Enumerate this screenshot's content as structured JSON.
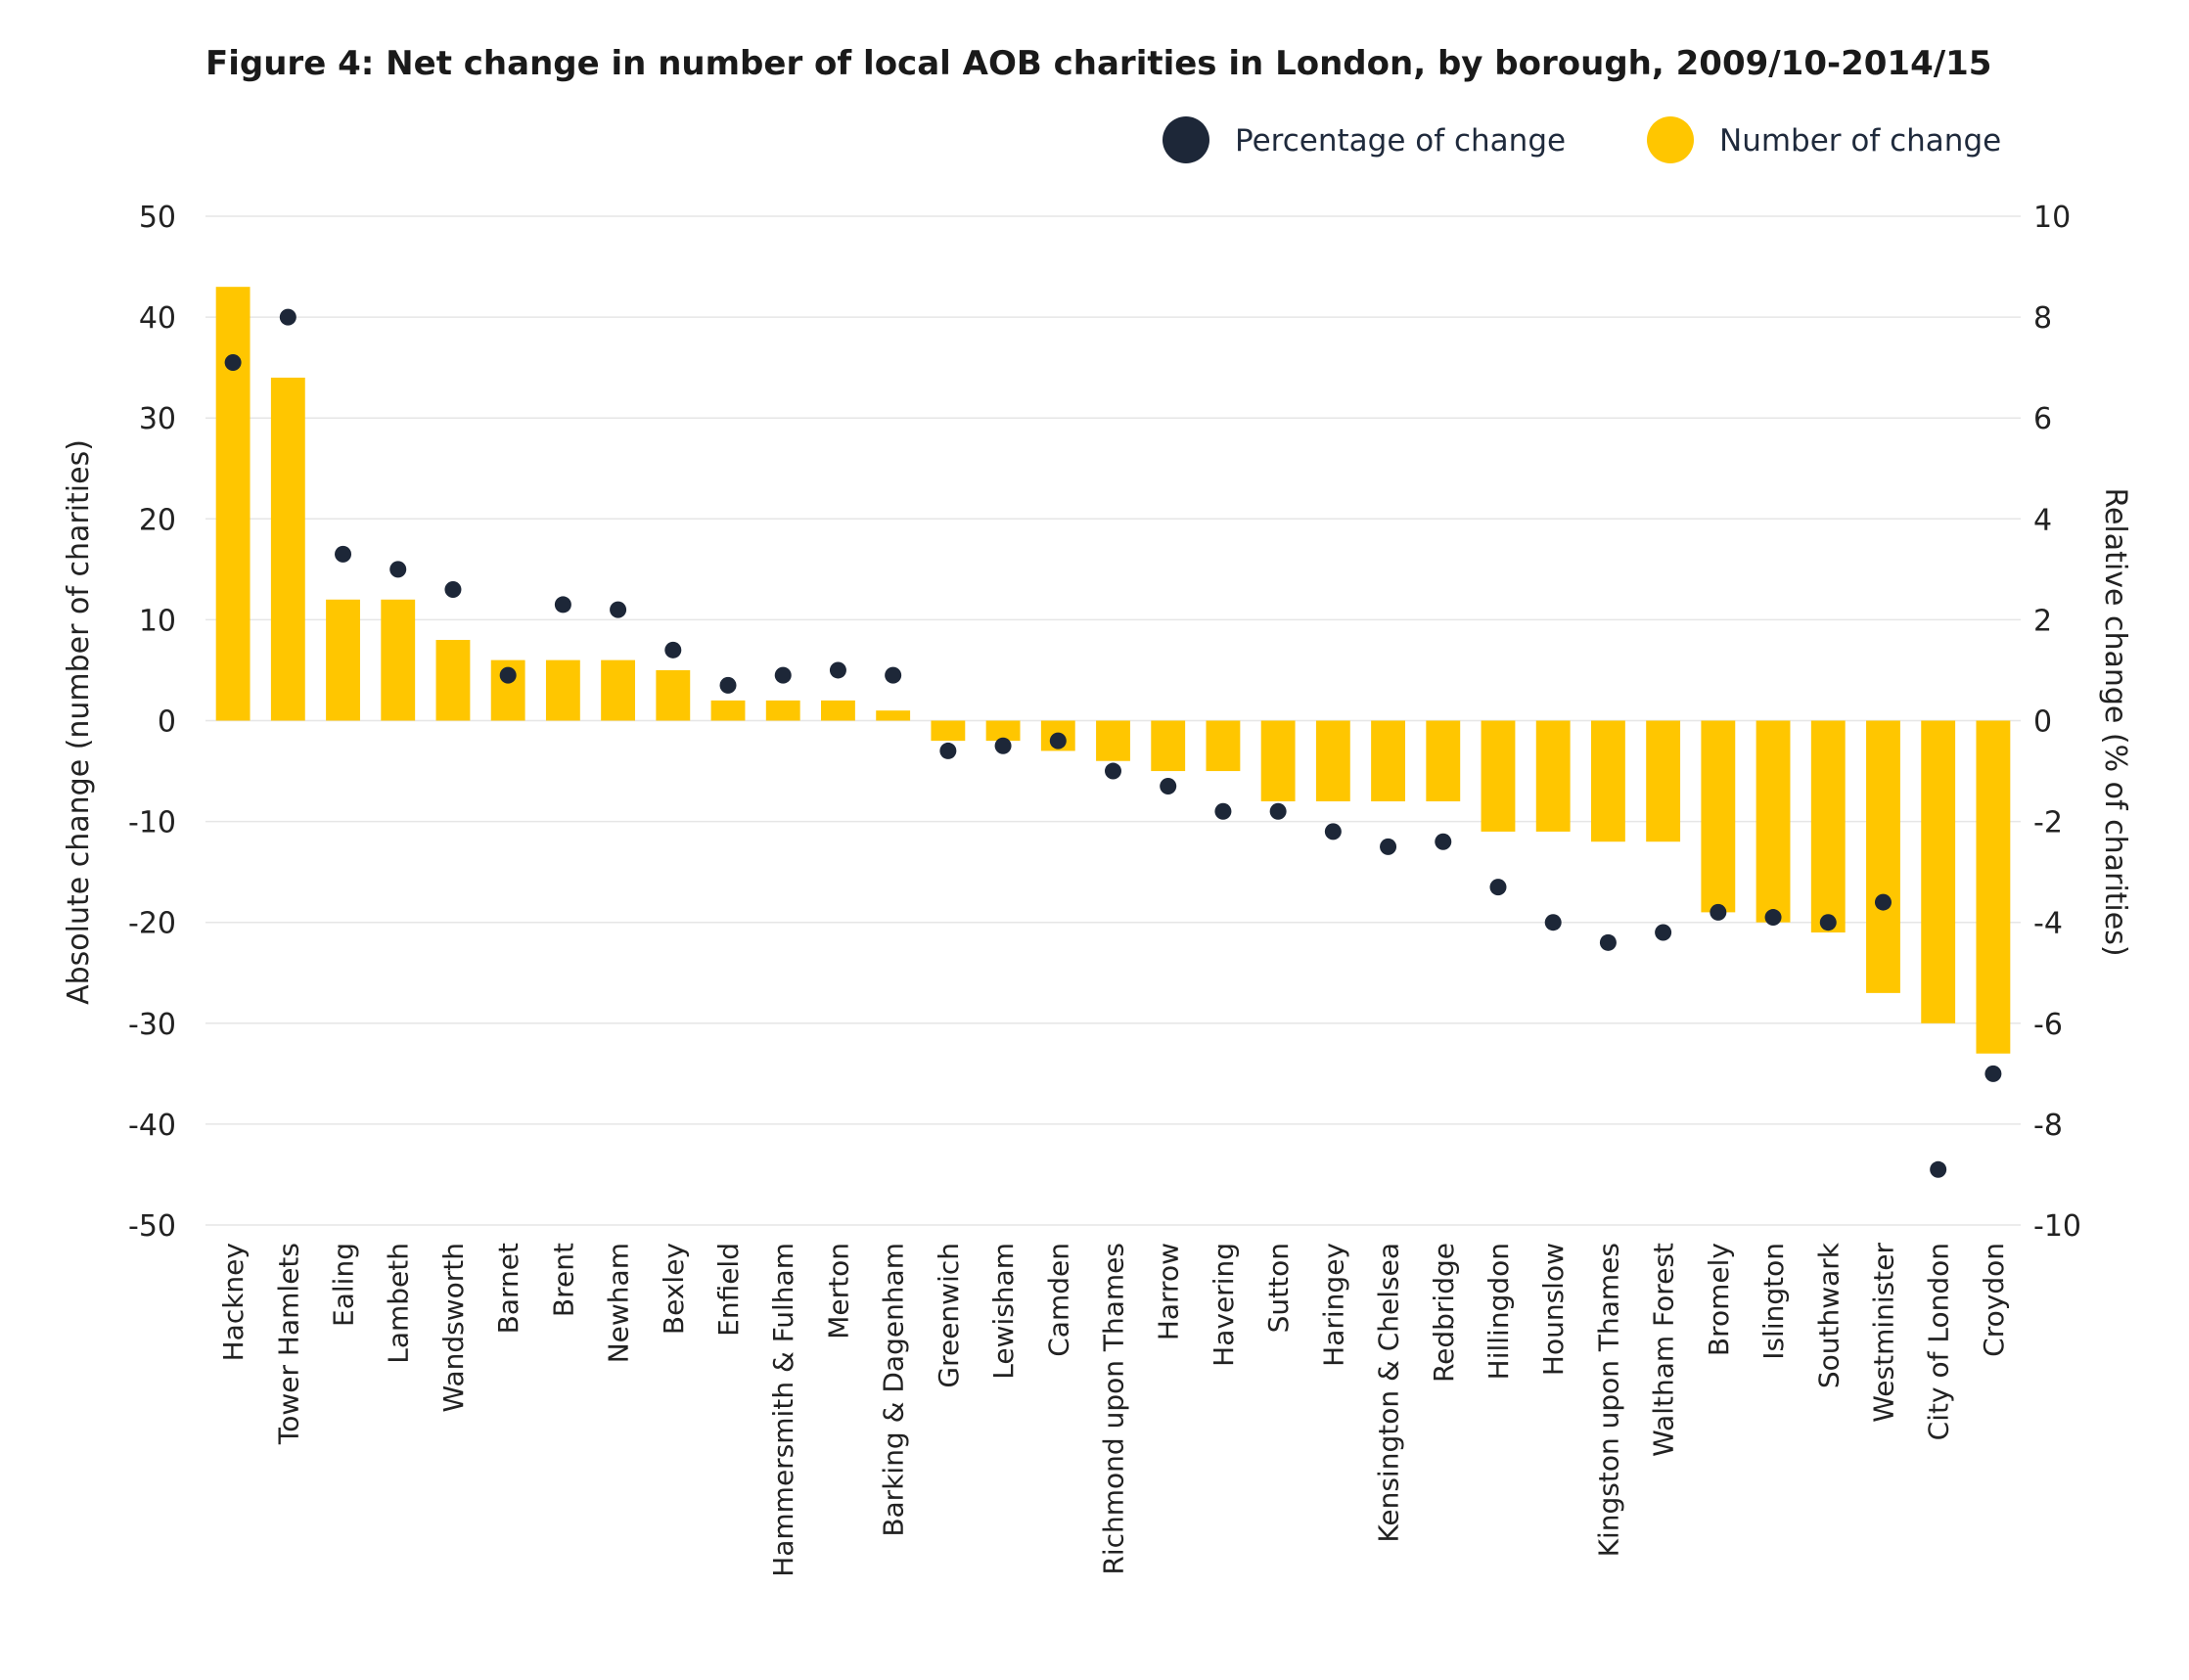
{
  "chart_data": {
    "type": "bar",
    "title": "Figure 4: Net change in number of local AOB charities in London, by borough, 2009/10-2014/15",
    "ylabel": "Absolute change (number of charities)",
    "y2label": "Relative change (% of charities)",
    "ylim": [
      -50,
      50
    ],
    "y2lim": [
      -10,
      10
    ],
    "yticks": [
      50,
      40,
      30,
      20,
      10,
      0,
      -10,
      -20,
      -30,
      -40,
      -50
    ],
    "y2ticks": [
      10,
      8,
      6,
      4,
      2,
      0,
      -2,
      -4,
      -6,
      -8,
      -10
    ],
    "legend_position": "top-right",
    "grid": true,
    "categories": [
      "Hackney",
      "Tower Hamlets",
      "Ealing",
      "Lambeth",
      "Wandsworth",
      "Barnet",
      "Brent",
      "Newham",
      "Bexley",
      "Enfield",
      "Hammersmith & Fulham",
      "Merton",
      "Barking & Dagenham",
      "Greenwich",
      "Lewisham",
      "Camden",
      "Richmond upon Thames",
      "Harrow",
      "Havering",
      "Sutton",
      "Haringey",
      "Kensington & Chelsea",
      "Redbridge",
      "Hillingdon",
      "Hounslow",
      "Kingston upon Thames",
      "Waltham Forest",
      "Bromely",
      "Islington",
      "Southwark",
      "Westminister",
      "City of London",
      "Croydon"
    ],
    "series": [
      {
        "name": "Number of change",
        "axis": "left",
        "color": "#FFC600",
        "marker": "bar",
        "values": [
          43,
          34,
          12,
          12,
          8,
          6,
          6,
          6,
          5,
          2,
          2,
          2,
          1,
          -2,
          -2,
          -3,
          -4,
          -5,
          -5,
          -8,
          -8,
          -8,
          -8,
          -11,
          -11,
          -12,
          -12,
          -19,
          -20,
          -21,
          -27,
          -30,
          -33
        ]
      },
      {
        "name": "Percentage of change",
        "axis": "right",
        "color": "#1d2738",
        "marker": "dot",
        "values": [
          7.1,
          8.0,
          3.3,
          3.0,
          2.6,
          0.9,
          2.3,
          2.2,
          1.4,
          0.7,
          0.9,
          1.0,
          0.9,
          -0.6,
          -0.5,
          -0.4,
          -1.0,
          -1.3,
          -1.8,
          -1.8,
          -2.2,
          -2.5,
          -2.4,
          -3.3,
          -4.0,
          -4.4,
          -4.2,
          -3.8,
          -3.9,
          -4.0,
          -3.6,
          -8.9,
          -7.0
        ]
      }
    ],
    "legend": [
      {
        "label": "Percentage of change",
        "color": "#1d2738"
      },
      {
        "label": "Number of change",
        "color": "#FFC600"
      }
    ]
  }
}
